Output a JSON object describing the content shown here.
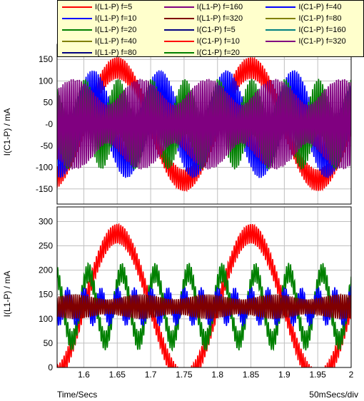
{
  "colors": {
    "red": "#ff0000",
    "purple": "#800080",
    "blue": "#0000ff",
    "green": "#008000",
    "navy": "#000080",
    "olive": "#808000",
    "teal": "#008080",
    "maroon": "#800000",
    "violet": "#7f007f",
    "grid": "#c0c0c0",
    "legend_bg": "#ffffcc"
  },
  "legend": [
    {
      "label": "I(L1-P) f=5",
      "color": "#ff0000"
    },
    {
      "label": "I(L1-P) f=160",
      "color": "#800080"
    },
    {
      "label": "I(C1-P) f=40",
      "color": "#0000ff"
    },
    {
      "label": "I(L1-P) f=10",
      "color": "#0000ff"
    },
    {
      "label": "I(L1-P) f=320",
      "color": "#800000"
    },
    {
      "label": "I(C1-P) f=80",
      "color": "#808000"
    },
    {
      "label": "I(L1-P) f=20",
      "color": "#008000"
    },
    {
      "label": "I(C1-P) f=5",
      "color": "#000080"
    },
    {
      "label": "I(C1-P) f=160",
      "color": "#008080"
    },
    {
      "label": "I(L1-P) f=40",
      "color": "#808000"
    },
    {
      "label": "I(C1-P) f=10",
      "color": "#ff0000"
    },
    {
      "label": "I(C1-P) f=320",
      "color": "#800080"
    },
    {
      "label": "I(L1-P) f=80",
      "color": "#000080"
    },
    {
      "label": "I(C1-P) f=20",
      "color": "#008000"
    }
  ],
  "footer": {
    "left": "Time/Secs",
    "right": "50mSecs/div"
  },
  "chart_data": [
    {
      "type": "line",
      "ylabel": "I(C1-P) / mA",
      "xlim": [
        1.56,
        2.0
      ],
      "ylim": [
        -185,
        185
      ],
      "yticks": [
        -150,
        -100,
        -50,
        0,
        50,
        100,
        150
      ],
      "ytick_labels": [
        "-150",
        "-100",
        "-50",
        "-0",
        "50",
        "100",
        "150"
      ],
      "xticks": [
        1.6,
        1.65,
        1.7,
        1.75,
        1.8,
        1.85,
        1.9,
        1.95,
        2.0
      ],
      "grid": true,
      "series": [
        {
          "name": "I(C1-P) f=5",
          "color": "#ff0000",
          "base_freq": 5,
          "base_amp": 130,
          "ripple_freq": 100,
          "ripple_amp": 25,
          "offset": 0
        },
        {
          "name": "I(C1-P) f=10",
          "color": "#0000ff",
          "base_freq": 10,
          "base_amp": 70,
          "ripple_freq": 100,
          "ripple_amp": 55,
          "offset": 0
        },
        {
          "name": "I(C1-P) f=20",
          "color": "#008000",
          "base_freq": 20,
          "base_amp": 40,
          "ripple_freq": 100,
          "ripple_amp": 65,
          "offset": 0
        },
        {
          "name": "I(C1-P) f=320",
          "color": "#800080",
          "base_freq": 320,
          "base_amp": 30,
          "ripple_freq": 100,
          "ripple_amp": 75,
          "offset": 0
        }
      ]
    },
    {
      "type": "line",
      "ylabel": "I(L1-P) / mA",
      "xlim": [
        1.56,
        2.0
      ],
      "ylim": [
        0,
        330
      ],
      "yticks": [
        0,
        50,
        100,
        150,
        200,
        250,
        300
      ],
      "ytick_labels": [
        "0",
        "50",
        "100",
        "150",
        "200",
        "250",
        "300"
      ],
      "xticks": [
        1.6,
        1.65,
        1.7,
        1.75,
        1.8,
        1.85,
        1.9,
        1.95,
        2.0
      ],
      "xtick_labels": [
        "1.6",
        "1.65",
        "1.7",
        "1.75",
        "1.8",
        "1.85",
        "1.9",
        "1.95",
        "2"
      ],
      "grid": true,
      "series": [
        {
          "name": "I(L1-P) f=5",
          "color": "#ff0000",
          "base_freq": 5,
          "base_amp": 150,
          "ripple_freq": 100,
          "ripple_amp": 20,
          "offset": 125
        },
        {
          "name": "I(L1-P) f=20",
          "color": "#008000",
          "base_freq": 20,
          "base_amp": 70,
          "ripple_freq": 100,
          "ripple_amp": 20,
          "offset": 125
        },
        {
          "name": "I(L1-P) f=40",
          "color": "#0000ff",
          "base_freq": 40,
          "base_amp": 20,
          "ripple_freq": 100,
          "ripple_amp": 20,
          "offset": 125
        },
        {
          "name": "I(L1-P) f=320",
          "color": "#800000",
          "base_freq": 320,
          "base_amp": 5,
          "ripple_freq": 100,
          "ripple_amp": 20,
          "offset": 125
        }
      ]
    }
  ]
}
